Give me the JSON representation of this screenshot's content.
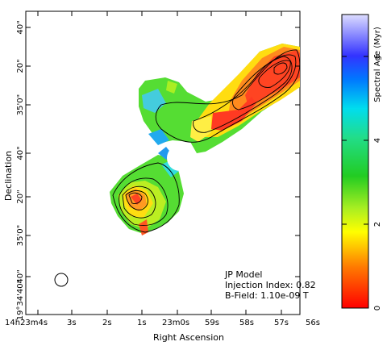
{
  "figure": {
    "xlabel": "Right Ascension",
    "ylabel": "Declination",
    "colorbar_label": "Spectral Age (Myr)",
    "x_ticks": [
      "14h23m4s",
      "3s",
      "2s",
      "1s",
      "23m0s",
      "59s",
      "58s",
      "57s",
      "56s"
    ],
    "y_ticks": [
      "40\"",
      "20\"",
      "35'0\"",
      "40\"",
      "20\"",
      "35'0\"",
      "40\"",
      "19°34'40\""
    ],
    "colorbar_ticks": [
      "0",
      "2",
      "4",
      "6"
    ],
    "annotations": {
      "model": "JP Model",
      "injection": "Injection Index: 0.82",
      "bfield": "B-Field: 1.10e-09 T"
    }
  },
  "chart_data": {
    "type": "heatmap",
    "title": "",
    "xlabel": "Right Ascension",
    "ylabel": "Declination",
    "colorbar": {
      "label": "Spectral Age (Myr)",
      "range": [
        0,
        7
      ],
      "ticks": [
        0,
        2,
        4,
        6
      ]
    },
    "x_ticks": [
      "14h23m4s",
      "3s",
      "2s",
      "1s",
      "23m0s",
      "59s",
      "58s",
      "57s",
      "56s"
    ],
    "y_ticks": [
      "40\"",
      "20\"",
      "35'0\"",
      "40\"",
      "20\"",
      "35'0\"",
      "40\"",
      "19°34'40\""
    ],
    "model": "JP Model",
    "injection_index": 0.82,
    "b_field_T": 1.1e-09
  }
}
